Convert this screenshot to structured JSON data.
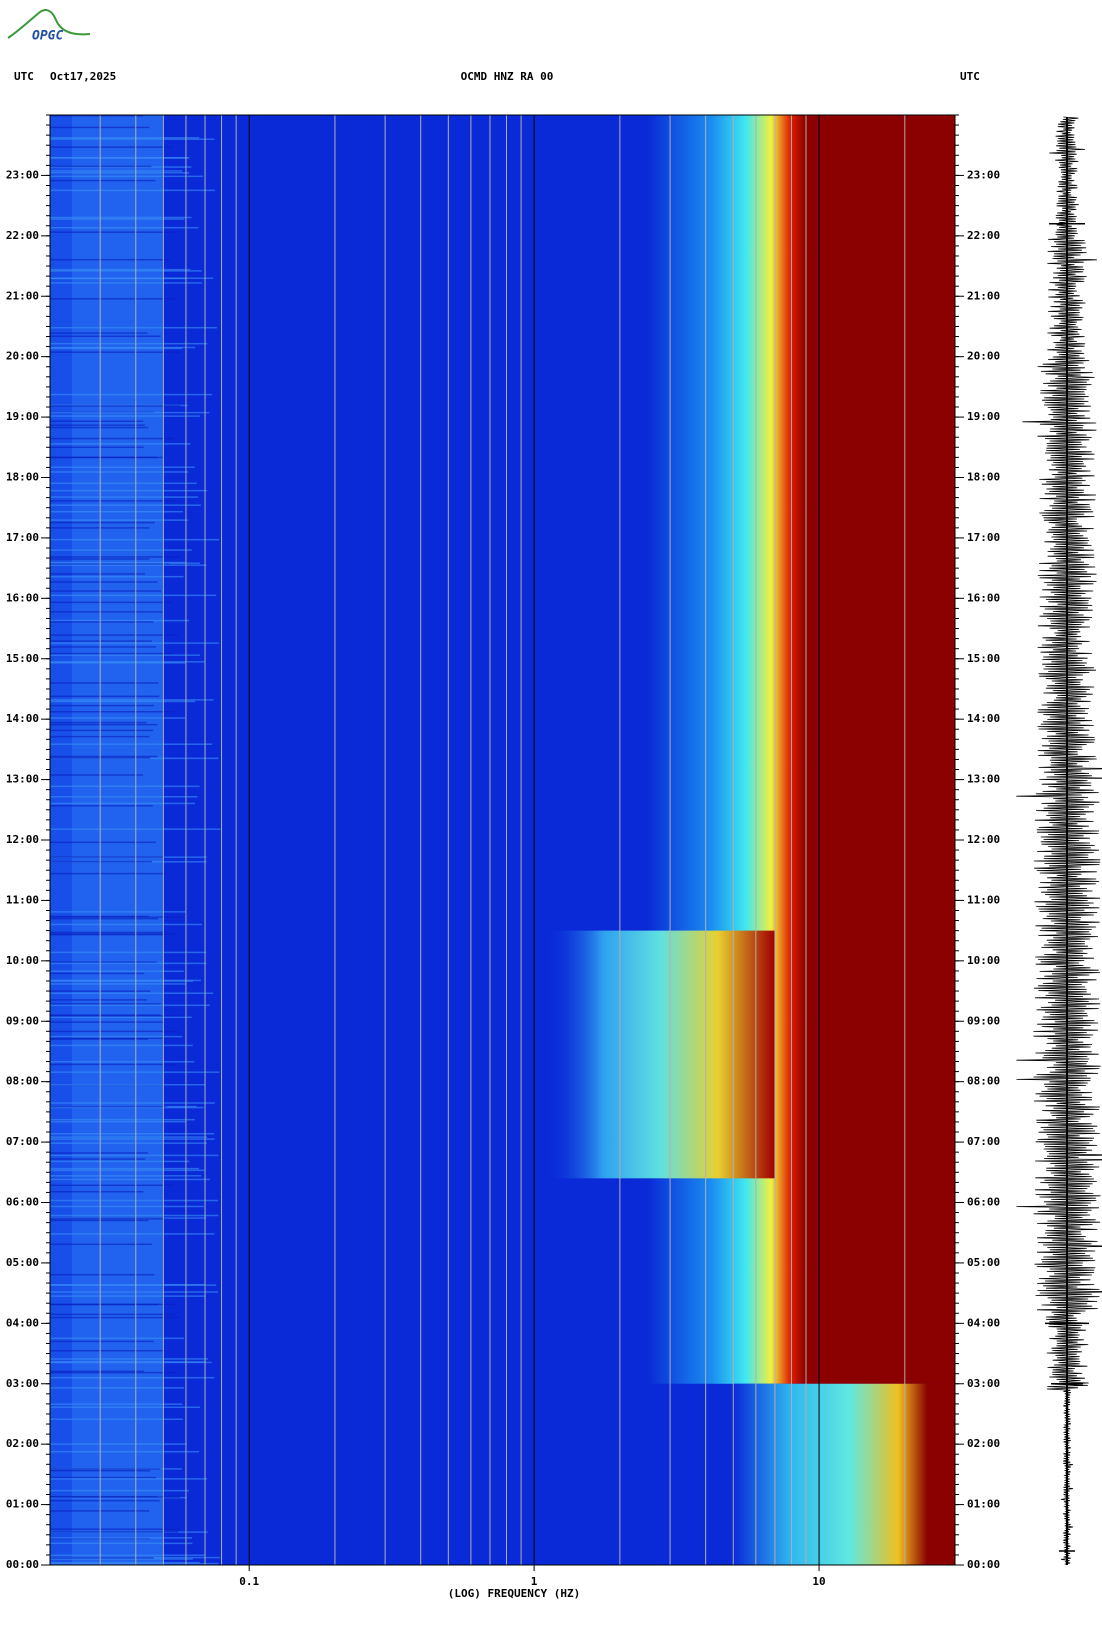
{
  "logo": "OPGC",
  "chart_data": {
    "type": "spectrogram",
    "header_left": "UTC",
    "date": "Oct17,2025",
    "title": "OCMD HNZ RA 00",
    "header_right": "UTC",
    "xlabel": "(LOG) FREQUENCY (HZ)",
    "xscale": "log",
    "xlim": [
      0.02,
      30
    ],
    "xticks": [
      0.1,
      1,
      10
    ],
    "ylim": [
      0,
      24
    ],
    "yticks": [
      {
        "value": 0,
        "label": "00:00"
      },
      {
        "value": 1,
        "label": "01:00"
      },
      {
        "value": 2,
        "label": "02:00"
      },
      {
        "value": 3,
        "label": "03:00"
      },
      {
        "value": 4,
        "label": "04:00"
      },
      {
        "value": 5,
        "label": "05:00"
      },
      {
        "value": 6,
        "label": "06:00"
      },
      {
        "value": 7,
        "label": "07:00"
      },
      {
        "value": 8,
        "label": "08:00"
      },
      {
        "value": 9,
        "label": "09:00"
      },
      {
        "value": 10,
        "label": "10:00"
      },
      {
        "value": 11,
        "label": "11:00"
      },
      {
        "value": 12,
        "label": "12:00"
      },
      {
        "value": 13,
        "label": "13:00"
      },
      {
        "value": 14,
        "label": "14:00"
      },
      {
        "value": 15,
        "label": "15:00"
      },
      {
        "value": 16,
        "label": "16:00"
      },
      {
        "value": 17,
        "label": "17:00"
      },
      {
        "value": 18,
        "label": "18:00"
      },
      {
        "value": 19,
        "label": "19:00"
      },
      {
        "value": 20,
        "label": "20:00"
      },
      {
        "value": 21,
        "label": "21:00"
      },
      {
        "value": 22,
        "label": "22:00"
      },
      {
        "value": 23,
        "label": "23:00"
      }
    ]
  }
}
